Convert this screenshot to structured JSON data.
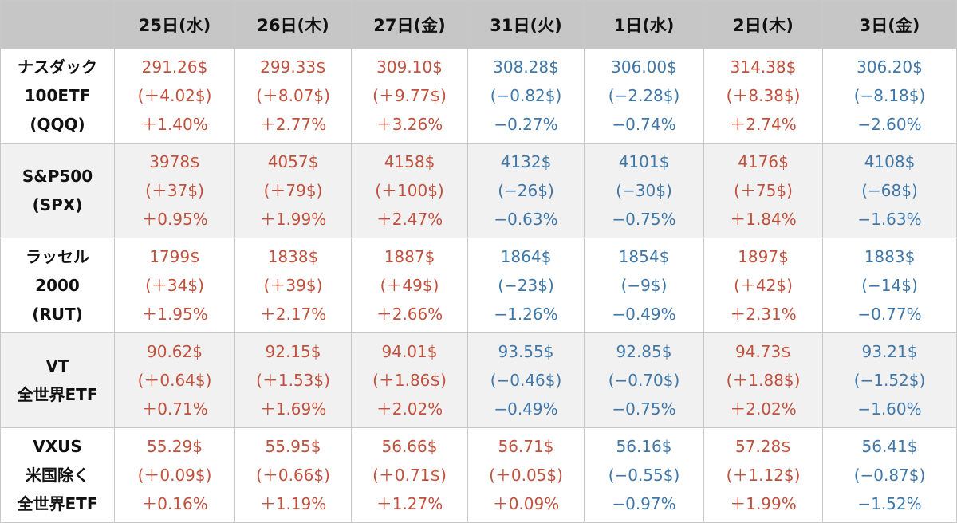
{
  "chart_data": {
    "type": "table",
    "corner": "",
    "columns": [
      "25日(水)",
      "26日(木)",
      "27日(金)",
      "31日(火)",
      "1日(水)",
      "2日(木)",
      "3日(金)"
    ],
    "rows": [
      {
        "label_lines": [
          "ナスダック",
          "100ETF",
          "(QQQ)"
        ],
        "cells": [
          {
            "dir": "up",
            "price": "291.26$",
            "change": "(＋4.02$)",
            "pct": "＋1.40%"
          },
          {
            "dir": "up",
            "price": "299.33$",
            "change": "(＋8.07$)",
            "pct": "＋2.77%"
          },
          {
            "dir": "up",
            "price": "309.10$",
            "change": "(＋9.77$)",
            "pct": "＋3.26%"
          },
          {
            "dir": "down",
            "price": "308.28$",
            "change": "(−0.82$)",
            "pct": "−0.27%"
          },
          {
            "dir": "down",
            "price": "306.00$",
            "change": "(−2.28$)",
            "pct": "−0.74%"
          },
          {
            "dir": "up",
            "price": "314.38$",
            "change": "(＋8.38$)",
            "pct": "＋2.74%"
          },
          {
            "dir": "down",
            "price": "306.20$",
            "change": "(−8.18$)",
            "pct": "−2.60%"
          }
        ]
      },
      {
        "label_lines": [
          "S&P500",
          "(SPX)"
        ],
        "cells": [
          {
            "dir": "up",
            "price": "3978$",
            "change": "(＋37$)",
            "pct": "＋0.95%"
          },
          {
            "dir": "up",
            "price": "4057$",
            "change": "(＋79$)",
            "pct": "＋1.99%"
          },
          {
            "dir": "up",
            "price": "4158$",
            "change": "(＋100$)",
            "pct": "＋2.47%"
          },
          {
            "dir": "down",
            "price": "4132$",
            "change": "(−26$)",
            "pct": "−0.63%"
          },
          {
            "dir": "down",
            "price": "4101$",
            "change": "(−30$)",
            "pct": "−0.75%"
          },
          {
            "dir": "up",
            "price": "4176$",
            "change": "(＋75$)",
            "pct": "＋1.84%"
          },
          {
            "dir": "down",
            "price": "4108$",
            "change": "(−68$)",
            "pct": "−1.63%"
          }
        ]
      },
      {
        "label_lines": [
          "ラッセル",
          "2000",
          "(RUT)"
        ],
        "cells": [
          {
            "dir": "up",
            "price": "1799$",
            "change": "(＋34$)",
            "pct": "＋1.95%"
          },
          {
            "dir": "up",
            "price": "1838$",
            "change": "(＋39$)",
            "pct": "＋2.17%"
          },
          {
            "dir": "up",
            "price": "1887$",
            "change": "(＋49$)",
            "pct": "＋2.66%"
          },
          {
            "dir": "down",
            "price": "1864$",
            "change": "(−23$)",
            "pct": "−1.26%"
          },
          {
            "dir": "down",
            "price": "1854$",
            "change": "(−9$)",
            "pct": "−0.49%"
          },
          {
            "dir": "up",
            "price": "1897$",
            "change": "(＋42$)",
            "pct": "＋2.31%"
          },
          {
            "dir": "down",
            "price": "1883$",
            "change": "(−14$)",
            "pct": "−0.77%"
          }
        ]
      },
      {
        "label_lines": [
          "VT",
          "全世界ETF"
        ],
        "cells": [
          {
            "dir": "up",
            "price": "90.62$",
            "change": "(＋0.64$)",
            "pct": "＋0.71%"
          },
          {
            "dir": "up",
            "price": "92.15$",
            "change": "(＋1.53$)",
            "pct": "＋1.69%"
          },
          {
            "dir": "up",
            "price": "94.01$",
            "change": "(＋1.86$)",
            "pct": "＋2.02%"
          },
          {
            "dir": "down",
            "price": "93.55$",
            "change": "(−0.46$)",
            "pct": "−0.49%"
          },
          {
            "dir": "down",
            "price": "92.85$",
            "change": "(−0.70$)",
            "pct": "−0.75%"
          },
          {
            "dir": "up",
            "price": "94.73$",
            "change": "(＋1.88$)",
            "pct": "＋2.02%"
          },
          {
            "dir": "down",
            "price": "93.21$",
            "change": "(−1.52$)",
            "pct": "−1.60%"
          }
        ]
      },
      {
        "label_lines": [
          "VXUS",
          "米国除く",
          "全世界ETF"
        ],
        "cells": [
          {
            "dir": "up",
            "price": "55.29$",
            "change": "(＋0.09$)",
            "pct": "＋0.16%"
          },
          {
            "dir": "up",
            "price": "55.95$",
            "change": "(＋0.66$)",
            "pct": "＋1.19%"
          },
          {
            "dir": "up",
            "price": "56.66$",
            "change": "(＋0.71$)",
            "pct": "＋1.27%"
          },
          {
            "dir": "up",
            "price": "56.71$",
            "change": "(＋0.05$)",
            "pct": "＋0.09%"
          },
          {
            "dir": "down",
            "price": "56.16$",
            "change": "(−0.55$)",
            "pct": "−0.97%"
          },
          {
            "dir": "up",
            "price": "57.28$",
            "change": "(＋1.12$)",
            "pct": "＋1.99%"
          },
          {
            "dir": "down",
            "price": "56.41$",
            "change": "(−0.87$)",
            "pct": "−1.52%"
          }
        ]
      }
    ]
  },
  "colors": {
    "up": "#c0513d",
    "down": "#3f77a8",
    "header_bg": "#c6c6c6",
    "row_alt_bg": "#f1f1f1",
    "border": "#c8c8c8"
  }
}
